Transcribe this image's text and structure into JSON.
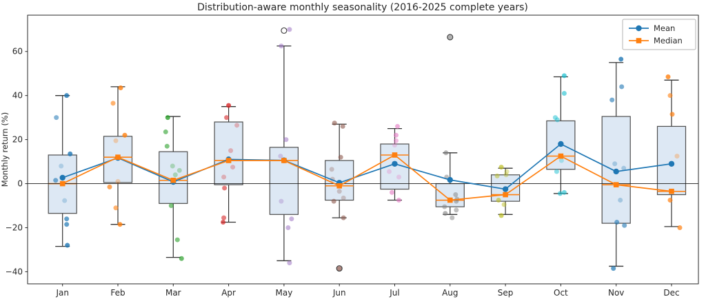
{
  "figure": {
    "title": "Distribution-aware monthly seasonality (2016-2025 complete years)",
    "ylabel": "Monthly return (%)"
  },
  "chart_data": {
    "type": "box",
    "title": "Distribution-aware monthly seasonality (2016-2025 complete years)",
    "ylabel": "Monthly return (%)",
    "xlabel": "",
    "categories": [
      "Jan",
      "Feb",
      "Mar",
      "Apr",
      "May",
      "Jun",
      "Jul",
      "Aug",
      "Sep",
      "Oct",
      "Nov",
      "Dec"
    ],
    "ylim": [
      -45.5,
      76.5
    ],
    "yticks": [
      -40,
      -20,
      0,
      20,
      40,
      60
    ],
    "grid": false,
    "zero_line": true,
    "legend": {
      "position": "upper right",
      "entries": [
        {
          "label": "Mean",
          "color": "#1f77b4",
          "marker": "circle"
        },
        {
          "label": "Median",
          "color": "#ff7f0e",
          "marker": "square"
        }
      ]
    },
    "series": [
      {
        "name": "Mean",
        "color": "#1f77b4",
        "marker": "circle",
        "values": [
          2.7,
          11.7,
          0.8,
          11.0,
          10.6,
          0.4,
          9.0,
          1.7,
          -2.5,
          18.0,
          5.5,
          9.0
        ]
      },
      {
        "name": "Median",
        "color": "#ff7f0e",
        "marker": "square",
        "values": [
          0.0,
          12.0,
          1.5,
          10.5,
          10.5,
          -1.0,
          13.0,
          -7.5,
          -5.0,
          12.5,
          -0.5,
          -3.5
        ]
      }
    ],
    "box_style": {
      "fill": "#dde8f4",
      "edge": "#4d4d4d",
      "whisker": "#333333",
      "median_color": "#ff7f0e"
    },
    "boxes": [
      {
        "month": "Jan",
        "whisker_low": -28.5,
        "q1": -13.5,
        "median": 0.0,
        "q3": 13.0,
        "whisker_high": 40.0,
        "fliers": []
      },
      {
        "month": "Feb",
        "whisker_low": -18.5,
        "q1": 0.5,
        "median": 12.0,
        "q3": 21.5,
        "whisker_high": 44.0,
        "fliers": []
      },
      {
        "month": "Mar",
        "whisker_low": -33.5,
        "q1": -9.0,
        "median": 1.5,
        "q3": 14.5,
        "whisker_high": 30.5,
        "fliers": []
      },
      {
        "month": "Apr",
        "whisker_low": -17.5,
        "q1": -0.5,
        "median": 10.5,
        "q3": 28.0,
        "whisker_high": 35.0,
        "fliers": []
      },
      {
        "month": "May",
        "whisker_low": -35.0,
        "q1": -14.0,
        "median": 10.5,
        "q3": 16.5,
        "whisker_high": 62.5,
        "fliers": [
          69.5
        ]
      },
      {
        "month": "Jun",
        "whisker_low": -15.5,
        "q1": -7.5,
        "median": -1.0,
        "q3": 10.5,
        "whisker_high": 27.0,
        "fliers": [
          -38.5
        ]
      },
      {
        "month": "Jul",
        "whisker_low": -7.5,
        "q1": -2.5,
        "median": 13.0,
        "q3": 18.0,
        "whisker_high": 25.0,
        "fliers": []
      },
      {
        "month": "Aug",
        "whisker_low": -14.0,
        "q1": -10.5,
        "median": -7.5,
        "q3": 0.0,
        "whisker_high": 14.0,
        "fliers": [
          66.5
        ]
      },
      {
        "month": "Sep",
        "whisker_low": -14.0,
        "q1": -8.0,
        "median": -5.0,
        "q3": 4.0,
        "whisker_high": 7.0,
        "fliers": []
      },
      {
        "month": "Oct",
        "whisker_low": -4.5,
        "q1": 6.5,
        "median": 12.5,
        "q3": 28.5,
        "whisker_high": 48.5,
        "fliers": []
      },
      {
        "month": "Nov",
        "whisker_low": -37.5,
        "q1": -18.0,
        "median": -0.5,
        "q3": 30.5,
        "whisker_high": 55.0,
        "fliers": []
      },
      {
        "month": "Dec",
        "whisker_low": -19.5,
        "q1": -5.0,
        "median": -3.5,
        "q3": 26.0,
        "whisker_high": 47.0,
        "fliers": []
      }
    ],
    "scatter": [
      {
        "month": "Jan",
        "color": "#1f77b4",
        "points": [
          [
            40,
            6,
            0.8
          ],
          [
            30,
            -9,
            0.55
          ],
          [
            13.5,
            11,
            0.8
          ],
          [
            8,
            -2,
            0.25
          ],
          [
            1.5,
            -10,
            0.6
          ],
          [
            -7.7,
            3,
            0.25
          ],
          [
            -16,
            6,
            0.7
          ],
          [
            -18.5,
            6,
            0.7
          ],
          [
            -28,
            7,
            0.8
          ]
        ]
      },
      {
        "month": "Feb",
        "color": "#ff7f0e",
        "points": [
          [
            43.5,
            4,
            0.8
          ],
          [
            36.5,
            -7,
            0.6
          ],
          [
            22,
            10,
            0.8
          ],
          [
            19.5,
            -3,
            0.3
          ],
          [
            1,
            0,
            0.3
          ],
          [
            -1.5,
            -12,
            0.7
          ],
          [
            -11,
            -3,
            0.6
          ],
          [
            -18.5,
            3,
            0.8
          ]
        ]
      },
      {
        "month": "Mar",
        "color": "#2ca02c",
        "points": [
          [
            30,
            -8,
            0.8
          ],
          [
            23.5,
            -11,
            0.6
          ],
          [
            17,
            -9,
            0.6
          ],
          [
            8,
            -1,
            0.3
          ],
          [
            6,
            9,
            0.3
          ],
          [
            4,
            3,
            0.3
          ],
          [
            -10,
            -3,
            0.6
          ],
          [
            -25.5,
            6,
            0.6
          ],
          [
            -34,
            12,
            0.7
          ]
        ]
      },
      {
        "month": "Apr",
        "color": "#d62728",
        "points": [
          [
            35.5,
            0,
            0.8
          ],
          [
            30,
            -3,
            0.6
          ],
          [
            26.5,
            12,
            0.3
          ],
          [
            15,
            3,
            0.3
          ],
          [
            7.5,
            6,
            0.3
          ],
          [
            3,
            -7,
            0.3
          ],
          [
            -2,
            -6,
            0.6
          ],
          [
            -15.5,
            -7,
            0.6
          ],
          [
            -17.5,
            -8,
            0.7
          ]
        ]
      },
      {
        "month": "May",
        "color": "#9467bd",
        "points": [
          [
            70,
            8,
            0.5
          ],
          [
            62.5,
            -4,
            0.5
          ],
          [
            20,
            3,
            0.5
          ],
          [
            12.5,
            -5,
            0.3
          ],
          [
            -8,
            -4,
            0.3
          ],
          [
            -16,
            11,
            0.5
          ],
          [
            -20,
            6,
            0.5
          ],
          [
            -36,
            8,
            0.5
          ]
        ]
      },
      {
        "month": "Jun",
        "color": "#8c564b",
        "points": [
          [
            27.5,
            -7,
            0.6
          ],
          [
            26,
            5,
            0.6
          ],
          [
            12,
            2,
            0.6
          ],
          [
            6.5,
            -11,
            0.3
          ],
          [
            2,
            -10,
            0.3
          ],
          [
            -3.5,
            0,
            0.3
          ],
          [
            -6.5,
            6,
            0.3
          ],
          [
            -8,
            -8,
            0.6
          ],
          [
            -15.5,
            6,
            0.6
          ],
          [
            -38.5,
            0,
            0.7
          ]
        ]
      },
      {
        "month": "Jul",
        "color": "#e377c2",
        "points": [
          [
            26,
            4,
            0.6
          ],
          [
            22,
            2,
            0.6
          ],
          [
            19.5,
            2,
            0.5
          ],
          [
            17.5,
            0,
            0.3
          ],
          [
            5.5,
            -8,
            0.3
          ],
          [
            3,
            6,
            0.3
          ],
          [
            -4,
            -4,
            0.6
          ],
          [
            -7.5,
            6,
            0.6
          ]
        ]
      },
      {
        "month": "Aug",
        "color": "#7f7f7f",
        "points": [
          [
            66.5,
            0,
            0.6
          ],
          [
            14,
            -6,
            0.6
          ],
          [
            3,
            -5,
            0.5
          ],
          [
            -5,
            8,
            0.5
          ],
          [
            -7,
            10,
            0.5
          ],
          [
            -8,
            9,
            0.5
          ],
          [
            -10.5,
            -8,
            0.5
          ],
          [
            -12,
            9,
            0.5
          ],
          [
            -13.5,
            -7,
            0.6
          ],
          [
            -15.5,
            3,
            0.5
          ]
        ]
      },
      {
        "month": "Sep",
        "color": "#bcbd22",
        "points": [
          [
            7.5,
            -6,
            0.7
          ],
          [
            5.5,
            2,
            0.4
          ],
          [
            4,
            1,
            0.4
          ],
          [
            3.5,
            -12,
            0.5
          ],
          [
            -7.5,
            -10,
            0.6
          ],
          [
            -9.5,
            -2,
            0.5
          ],
          [
            -14.5,
            -6,
            0.7
          ]
        ]
      },
      {
        "month": "Oct",
        "color": "#17becf",
        "points": [
          [
            49,
            5,
            0.7
          ],
          [
            41,
            5,
            0.6
          ],
          [
            30,
            -8,
            0.5
          ],
          [
            29,
            -5,
            0.5
          ],
          [
            10.5,
            1,
            0.3
          ],
          [
            5.5,
            -6,
            0.5
          ],
          [
            -4,
            5,
            0.6
          ],
          [
            -4.5,
            -1,
            0.6
          ]
        ]
      },
      {
        "month": "Nov",
        "color": "#1f77b4",
        "points": [
          [
            56.5,
            7,
            0.8
          ],
          [
            44,
            8,
            0.6
          ],
          [
            38,
            -6,
            0.6
          ],
          [
            9,
            -2,
            0.3
          ],
          [
            7,
            11,
            0.3
          ],
          [
            -7.5,
            6,
            0.3
          ],
          [
            -17.5,
            1,
            0.6
          ],
          [
            -19,
            12,
            0.6
          ],
          [
            -38.5,
            -4,
            0.7
          ]
        ]
      },
      {
        "month": "Dec",
        "color": "#ff7f0e",
        "points": [
          [
            48.5,
            -5,
            0.8
          ],
          [
            40,
            -2,
            0.6
          ],
          [
            31.5,
            1,
            0.7
          ],
          [
            12.5,
            8,
            0.3
          ],
          [
            -7.5,
            -2,
            0.7
          ],
          [
            -20,
            12,
            0.7
          ]
        ]
      }
    ]
  }
}
